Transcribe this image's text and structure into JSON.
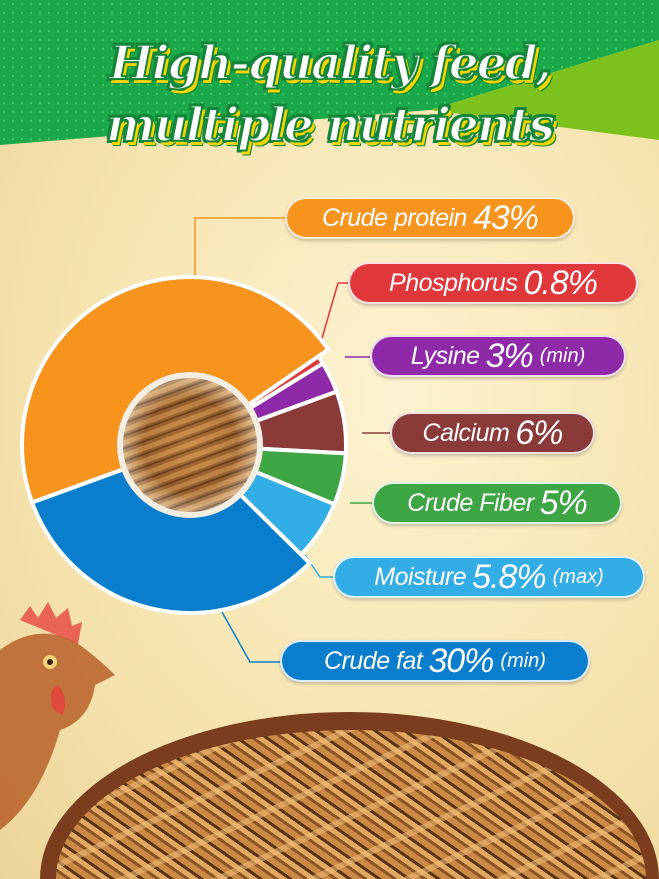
{
  "title": {
    "line1": "High-quality feed,",
    "line2": "multiple nutrients"
  },
  "colors": {
    "banner_green": "#1aa84a",
    "banner_lime": "#7dc11e",
    "background": "#f6e4b0"
  },
  "chart_data": {
    "type": "pie",
    "style": "donut",
    "center_image": "dried-mealworms",
    "slices": [
      {
        "name": "Crude protein",
        "value": 43,
        "label": "43%",
        "qualifier": "",
        "color": "#f7941d"
      },
      {
        "name": "Phosphorus",
        "value": 0.8,
        "label": "0.8%",
        "qualifier": "",
        "color": "#e0373a"
      },
      {
        "name": "Lysine",
        "value": 3,
        "label": "3%",
        "qualifier": "(min)",
        "color": "#8e2aa8"
      },
      {
        "name": "Calcium",
        "value": 6,
        "label": "6%",
        "qualifier": "",
        "color": "#8b3a3a"
      },
      {
        "name": "Crude Fiber",
        "value": 5,
        "label": "5%",
        "qualifier": "",
        "color": "#3ea545"
      },
      {
        "name": "Moisture",
        "value": 5.8,
        "label": "5.8%",
        "qualifier": "(max)",
        "color": "#33ade6"
      },
      {
        "name": "Crude fat",
        "value": 30,
        "label": "30%",
        "qualifier": "(min)",
        "color": "#0a7ecd"
      }
    ]
  }
}
